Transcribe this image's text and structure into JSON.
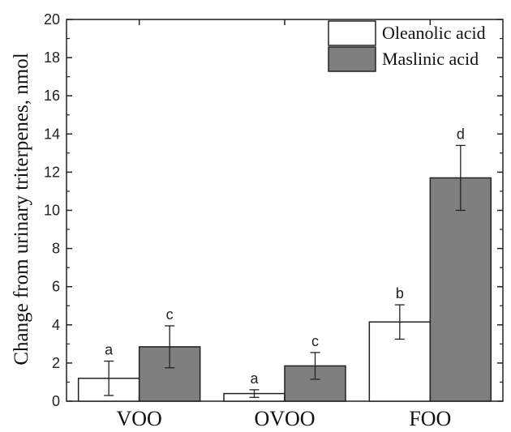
{
  "chart_data": {
    "type": "bar",
    "categories": [
      "VOO",
      "OVOO",
      "FOO"
    ],
    "series": [
      {
        "name": "Oleanolic acid",
        "color": "#ffffff",
        "values": [
          1.2,
          0.4,
          4.15
        ],
        "errors": [
          0.9,
          0.2,
          0.9
        ],
        "letters": [
          "a",
          "a",
          "b"
        ]
      },
      {
        "name": "Maslinic acid",
        "color": "#7f7f7f",
        "values": [
          2.85,
          1.85,
          11.7
        ],
        "errors": [
          1.1,
          0.7,
          1.7
        ],
        "letters": [
          "c",
          "c",
          "d"
        ]
      }
    ],
    "title": "",
    "xlabel": "",
    "ylabel": "Change from urinary triterpenes, nmol",
    "ylim": [
      0,
      20
    ],
    "yticks": [
      "0",
      "2",
      "4",
      "6",
      "8",
      "10",
      "12",
      "14",
      "16",
      "18",
      "20"
    ],
    "grid": false,
    "legend": "top-right"
  }
}
